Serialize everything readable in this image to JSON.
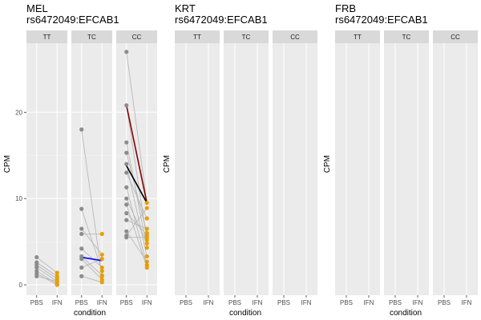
{
  "colors": {
    "panel_bg": "#ebebeb",
    "strip_bg": "#d9d9d9",
    "grid_major": "#ffffff",
    "grid_minor": "#f5f5f5",
    "pbs_point": "#8c8c8c",
    "ifn_point": "#e69f00",
    "pair_line": "#b3b3b3",
    "mean_tc": "#0000ff",
    "mean_cc_a": "#8b0000",
    "mean_cc_b": "#000000"
  },
  "chart_data": [
    {
      "type": "line",
      "title": "MEL\nrs6472049:EFCAB1",
      "title_lines": [
        "MEL",
        "rs6472049:EFCAB1"
      ],
      "xlabel": "condition",
      "ylabel": "CPM",
      "x_categories": [
        "PBS",
        "IFN"
      ],
      "facets": [
        "TT",
        "TC",
        "CC"
      ],
      "ylim": [
        -1.2,
        28
      ],
      "yticks": [
        0,
        10,
        20
      ],
      "grid": true,
      "groups": [
        {
          "facet": "TT",
          "pairs": [
            [
              3.2,
              1.4
            ],
            [
              2.6,
              1.0
            ],
            [
              2.3,
              0.7
            ],
            [
              2.0,
              0.4
            ],
            [
              1.6,
              0.1
            ],
            [
              1.3,
              0.0
            ],
            [
              1.0,
              0.4
            ]
          ],
          "mean_lines": []
        },
        {
          "facet": "TC",
          "pairs": [
            [
              18.0,
              1.0
            ],
            [
              8.8,
              1.6
            ],
            [
              6.5,
              3.5
            ],
            [
              5.9,
              5.9
            ],
            [
              4.2,
              2.0
            ],
            [
              3.3,
              1.1
            ],
            [
              3.0,
              0.6
            ],
            [
              2.0,
              3.0
            ],
            [
              1.0,
              0.3
            ]
          ],
          "mean_lines": [
            {
              "from": 3.2,
              "to": 2.8,
              "color": "#0000ff"
            }
          ]
        },
        {
          "facet": "CC",
          "pairs": [
            [
              27.0,
              9.5
            ],
            [
              20.8,
              5.2
            ],
            [
              16.5,
              4.3
            ],
            [
              15.3,
              6.0
            ],
            [
              14.0,
              3.3
            ],
            [
              13.0,
              7.7
            ],
            [
              11.3,
              2.3
            ],
            [
              10.0,
              4.8
            ],
            [
              9.3,
              2.0
            ],
            [
              8.3,
              5.8
            ],
            [
              7.5,
              6.5
            ],
            [
              6.2,
              2.7
            ],
            [
              5.7,
              8.9
            ],
            [
              5.5,
              5.5
            ]
          ],
          "mean_lines": [
            {
              "from": 20.8,
              "to": 9.5,
              "color": "#8b0000"
            },
            {
              "from": 13.8,
              "to": 9.5,
              "color": "#000000"
            }
          ]
        }
      ]
    },
    {
      "type": "line",
      "title": "KRT\nrs6472049:EFCAB1",
      "title_lines": [
        "KRT",
        "rs6472049:EFCAB1"
      ],
      "xlabel": "condition",
      "ylabel": "CPM",
      "x_categories": [
        "PBS",
        "IFN"
      ],
      "facets": [
        "TT",
        "TC",
        "CC"
      ],
      "ylim": [
        -1.2,
        28
      ],
      "yticks": [],
      "grid": true,
      "groups": []
    },
    {
      "type": "line",
      "title": "FRB\nrs6472049:EFCAB1",
      "title_lines": [
        "FRB",
        "rs6472049:EFCAB1"
      ],
      "xlabel": "condition",
      "ylabel": "CPM",
      "x_categories": [
        "PBS",
        "IFN"
      ],
      "facets": [
        "TT",
        "TC",
        "CC"
      ],
      "ylim": [
        -1.2,
        28
      ],
      "yticks": [],
      "grid": true,
      "groups": []
    }
  ]
}
